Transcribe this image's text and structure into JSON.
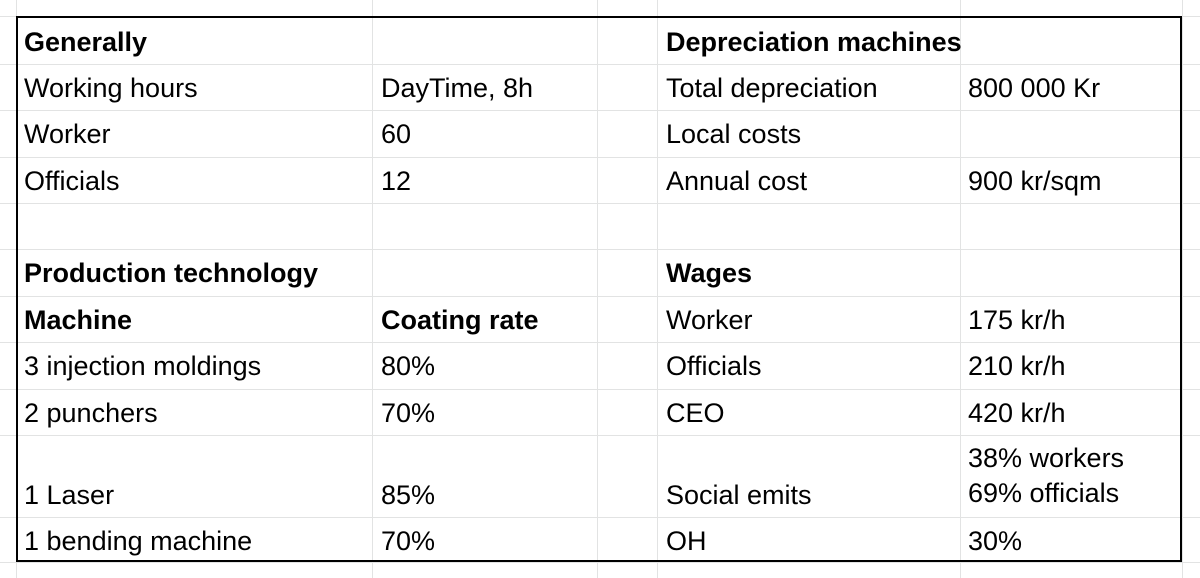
{
  "generally": {
    "heading": "Generally",
    "rows": [
      {
        "label": "Working hours",
        "value": "DayTime, 8h"
      },
      {
        "label": "Worker",
        "value": "60"
      },
      {
        "label": "Officials",
        "value": "12"
      }
    ]
  },
  "depreciation": {
    "heading": "Depreciation machines",
    "rows": [
      {
        "label": "Total depreciation",
        "value": "800 000 Kr"
      },
      {
        "label": "Local costs",
        "value": ""
      },
      {
        "label": "Annual cost",
        "value": "900 kr/sqm"
      }
    ]
  },
  "production": {
    "heading": "Production technology",
    "col_machine": "Machine",
    "col_rate": "Coating rate",
    "rows": [
      {
        "machine": "3 injection moldings",
        "rate": "80%"
      },
      {
        "machine": "2 punchers",
        "rate": "70%"
      },
      {
        "machine": "1 Laser",
        "rate": "85%"
      },
      {
        "machine": "1 bending machine",
        "rate": "70%"
      }
    ]
  },
  "wages": {
    "heading": "Wages",
    "rows": [
      {
        "label": "Worker",
        "value": "175 kr/h"
      },
      {
        "label": "Officials",
        "value": "210 kr/h"
      },
      {
        "label": "CEO",
        "value": "420 kr/h"
      },
      {
        "label": "Social emits",
        "value": "38% workers\n69% officials"
      },
      {
        "label": "OH",
        "value": "30%"
      }
    ]
  }
}
